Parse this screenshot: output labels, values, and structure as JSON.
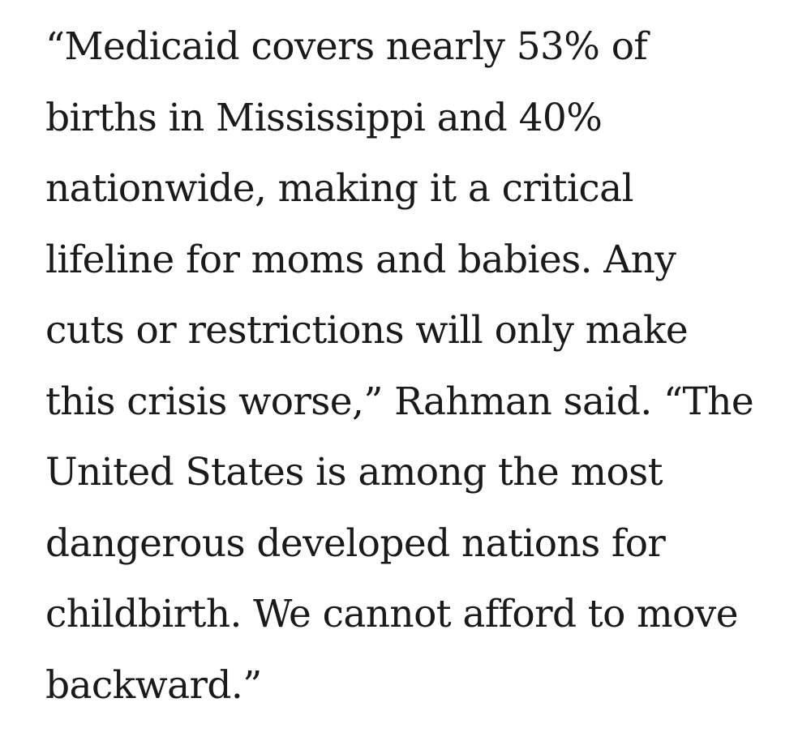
{
  "article": {
    "lines": [
      "“Medicaid covers nearly 53% of",
      "births in Mississippi and 40%",
      "nationwide, making it a critical",
      "lifeline for moms and babies. Any",
      "cuts or restrictions will only make",
      "this crisis worse,” Rahman said. “The",
      "United States is among the most",
      "dangerous developed nations for",
      "childbirth. We cannot afford to move",
      "backward.”"
    ]
  }
}
